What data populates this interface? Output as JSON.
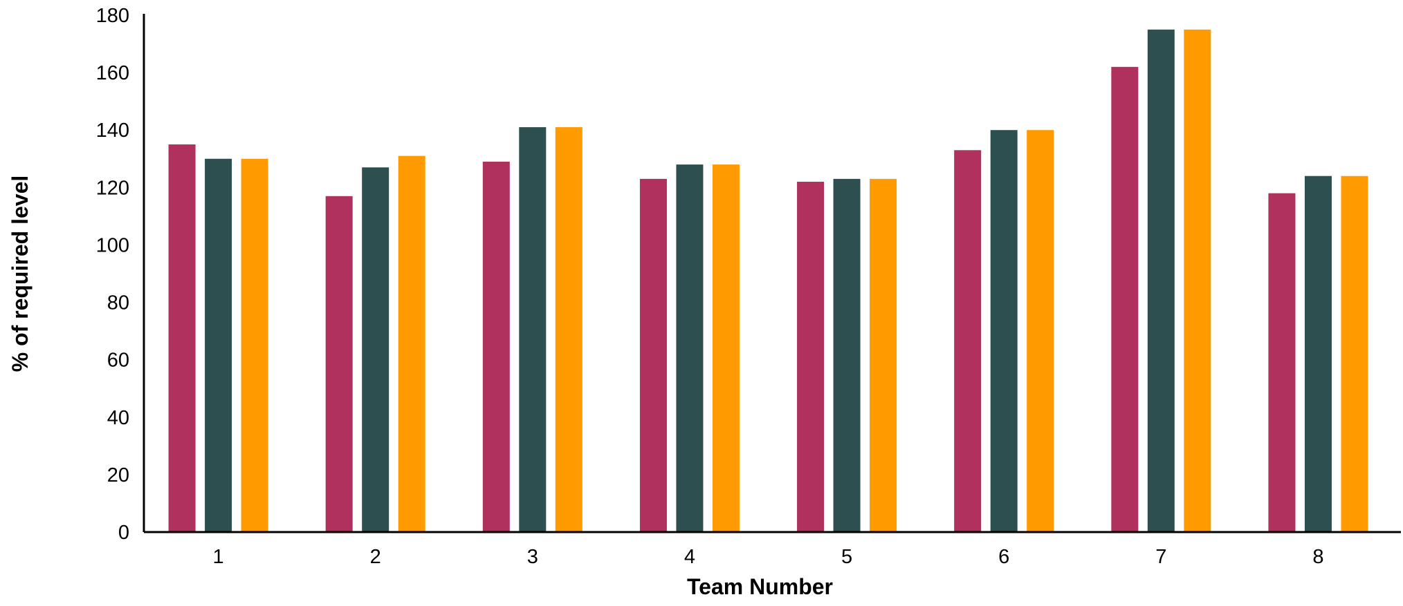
{
  "chart_data": {
    "type": "bar",
    "title": "",
    "xlabel": "Team Number",
    "ylabel": "% of required level",
    "categories": [
      "1",
      "2",
      "3",
      "4",
      "5",
      "6",
      "7",
      "8"
    ],
    "series": [
      {
        "color": "#B0305E",
        "values": [
          135,
          117,
          129,
          123,
          122,
          133,
          162,
          118
        ]
      },
      {
        "color": "#2E4F4F",
        "values": [
          130,
          127,
          141,
          128,
          123,
          140,
          175,
          124
        ]
      },
      {
        "color": "#FF9A00",
        "values": [
          130,
          131,
          141,
          128,
          123,
          140,
          175,
          124
        ]
      }
    ],
    "yticks": [
      "0",
      "20",
      "40",
      "60",
      "80",
      "100",
      "120",
      "140",
      "160",
      "180"
    ],
    "ylim": [
      0,
      180
    ],
    "grid": false,
    "legend": "none"
  }
}
